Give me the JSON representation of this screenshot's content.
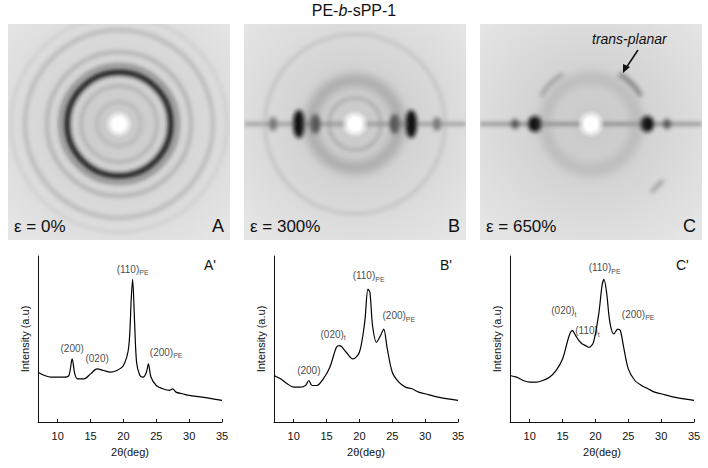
{
  "title": "PE-b-sPP-1",
  "patterns": [
    {
      "strain": "ε = 0%",
      "panel": "A"
    },
    {
      "strain": "ε = 300%",
      "panel": "B"
    },
    {
      "strain": "ε = 650%",
      "panel": "C",
      "annotation": "trans-planar"
    }
  ],
  "chart_data": [
    {
      "type": "line",
      "panel": "A'",
      "color": "#000000",
      "grid": false,
      "tick_labels": "x",
      "x_label": "2θ(deg)",
      "y_label": "Intensity (a.u)",
      "xlim": [
        7,
        35
      ],
      "xticks": [
        10,
        15,
        20,
        25,
        30,
        35
      ],
      "ylim": [
        0,
        1
      ],
      "x": [
        7,
        8,
        9,
        10,
        11,
        11.7,
        12.2,
        12.6,
        13,
        14,
        15,
        16,
        17,
        18,
        19,
        20,
        20.8,
        21.2,
        21.4,
        21.7,
        22,
        22.5,
        23,
        23.5,
        23.8,
        24.2,
        25,
        26,
        27,
        27.5,
        28,
        29,
        30,
        32,
        35
      ],
      "values": [
        0.3,
        0.28,
        0.27,
        0.27,
        0.27,
        0.28,
        0.38,
        0.29,
        0.26,
        0.26,
        0.29,
        0.32,
        0.31,
        0.3,
        0.31,
        0.34,
        0.45,
        0.75,
        0.86,
        0.6,
        0.36,
        0.28,
        0.27,
        0.3,
        0.35,
        0.27,
        0.22,
        0.2,
        0.19,
        0.2,
        0.18,
        0.17,
        0.16,
        0.15,
        0.13
      ],
      "annotations": [
        {
          "x": 12.2,
          "y": 0.44,
          "text": "(200)"
        },
        {
          "x": 16,
          "y": 0.38,
          "text": "(020)"
        },
        {
          "x": 21.4,
          "y": 0.92,
          "text": "(110)",
          "subscript": "PE"
        },
        {
          "x": 26.5,
          "y": 0.42,
          "text": "(200)",
          "subscript": "PE"
        }
      ]
    },
    {
      "type": "line",
      "panel": "B'",
      "color": "#000000",
      "grid": false,
      "tick_labels": "x",
      "x_label": "2θ(deg)",
      "y_label": "Intensity (a.u)",
      "xlim": [
        7,
        35
      ],
      "xticks": [
        10,
        15,
        20,
        25,
        30,
        35
      ],
      "ylim": [
        0,
        1
      ],
      "x": [
        7,
        8,
        9,
        10,
        11,
        11.8,
        12.3,
        12.8,
        13.5,
        14.5,
        15.5,
        16.5,
        17,
        18,
        19,
        20,
        20.8,
        21.3,
        21.6,
        22,
        22.6,
        23.2,
        23.7,
        24.2,
        25,
        26,
        27,
        28,
        29,
        30,
        32,
        35
      ],
      "values": [
        0.28,
        0.26,
        0.23,
        0.21,
        0.21,
        0.22,
        0.25,
        0.22,
        0.22,
        0.26,
        0.33,
        0.45,
        0.46,
        0.42,
        0.38,
        0.42,
        0.6,
        0.8,
        0.78,
        0.58,
        0.48,
        0.52,
        0.56,
        0.45,
        0.3,
        0.24,
        0.21,
        0.2,
        0.18,
        0.17,
        0.15,
        0.13
      ],
      "annotations": [
        {
          "x": 12.3,
          "y": 0.31,
          "text": "(200)"
        },
        {
          "x": 16,
          "y": 0.53,
          "text": "(020)",
          "subscript": "t"
        },
        {
          "x": 21.4,
          "y": 0.88,
          "text": "(110)",
          "subscript": "PE"
        },
        {
          "x": 26,
          "y": 0.64,
          "text": "(200)",
          "subscript": "PE"
        }
      ]
    },
    {
      "type": "line",
      "panel": "C'",
      "color": "#000000",
      "grid": false,
      "tick_labels": "x",
      "x_label": "2θ(deg)",
      "y_label": "Intensity (a.u)",
      "xlim": [
        7,
        35
      ],
      "xticks": [
        10,
        15,
        20,
        25,
        30,
        35
      ],
      "ylim": [
        0,
        1
      ],
      "x": [
        7,
        8,
        9,
        10,
        11,
        12,
        13,
        14,
        15,
        16,
        16.5,
        17,
        17.5,
        18,
        18.5,
        19,
        19.7,
        20.5,
        21,
        21.3,
        21.7,
        22.2,
        22.8,
        23.4,
        23.8,
        24.3,
        25,
        26,
        27,
        28,
        29,
        30,
        32,
        35
      ],
      "values": [
        0.28,
        0.27,
        0.25,
        0.24,
        0.24,
        0.25,
        0.27,
        0.31,
        0.38,
        0.52,
        0.55,
        0.52,
        0.49,
        0.47,
        0.46,
        0.45,
        0.48,
        0.65,
        0.82,
        0.86,
        0.78,
        0.6,
        0.53,
        0.56,
        0.55,
        0.45,
        0.32,
        0.25,
        0.22,
        0.2,
        0.18,
        0.17,
        0.15,
        0.13
      ],
      "annotations": [
        {
          "x": 15.2,
          "y": 0.67,
          "text": "(020)",
          "subscript": "t"
        },
        {
          "x": 18.8,
          "y": 0.55,
          "text": "(110)",
          "subscript": "t"
        },
        {
          "x": 21.4,
          "y": 0.93,
          "text": "(110)",
          "subscript": "PE"
        },
        {
          "x": 26.5,
          "y": 0.65,
          "text": "(200)",
          "subscript": "PE"
        }
      ]
    }
  ]
}
